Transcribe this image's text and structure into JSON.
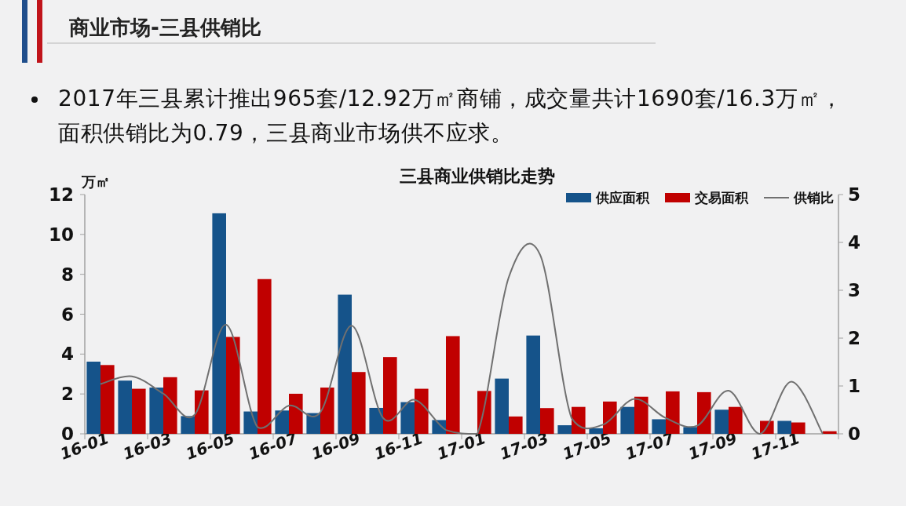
{
  "chart_data": {
    "type": "bar",
    "title": "三县商业供销比走势",
    "annotations": [
      "商业市场-三县供销比",
      "2017年三县累计推出965套/12.92万㎡商铺，成交量共计1690套/16.3万㎡，面积供销比为0.79，三县商业市场供不应求。"
    ],
    "ylabel": "万㎡",
    "categories": [
      "16-01",
      null,
      "16-03",
      null,
      "16-05",
      null,
      "16-07",
      null,
      "16-09",
      null,
      "16-11",
      null,
      "17-01",
      null,
      "17-03",
      null,
      "17-05",
      null,
      "17-07",
      null,
      "17-09",
      null,
      "17-11",
      null
    ],
    "series": [
      {
        "name": "供应面积",
        "color": "#15538a",
        "values": [
          3.62,
          2.67,
          2.32,
          0.89,
          11.06,
          1.12,
          1.17,
          1.04,
          6.98,
          1.3,
          1.59,
          0.69,
          0,
          2.77,
          4.93,
          0.43,
          0.28,
          1.35,
          0.73,
          0.34,
          1.21,
          0,
          0.65,
          0
        ]
      },
      {
        "name": "交易面积",
        "color": "#c00000",
        "values": [
          3.45,
          2.26,
          2.84,
          2.18,
          4.86,
          7.76,
          2.01,
          2.32,
          3.1,
          3.85,
          2.26,
          4.9,
          2.15,
          0.87,
          1.29,
          1.35,
          1.62,
          1.86,
          2.13,
          2.09,
          1.35,
          0.65,
          0.57,
          0.13
        ]
      },
      {
        "name": "供销比",
        "type": "line",
        "axis": "y2",
        "color": "#707070",
        "values": [
          1.04,
          1.2,
          0.84,
          0.4,
          2.28,
          0.14,
          0.59,
          0.45,
          2.26,
          0.33,
          0.71,
          0.08,
          0,
          3.27,
          3.74,
          0.33,
          0.19,
          0.73,
          0.33,
          0.17,
          0.9,
          0,
          1.09,
          0
        ]
      }
    ],
    "ylim": [
      0,
      12
    ],
    "yticks": [
      0,
      2,
      4,
      6,
      8,
      10,
      12
    ],
    "y2lim": [
      0,
      5
    ],
    "y2ticks": [
      0,
      1,
      2,
      3,
      4,
      5
    ],
    "legend": "top right"
  }
}
